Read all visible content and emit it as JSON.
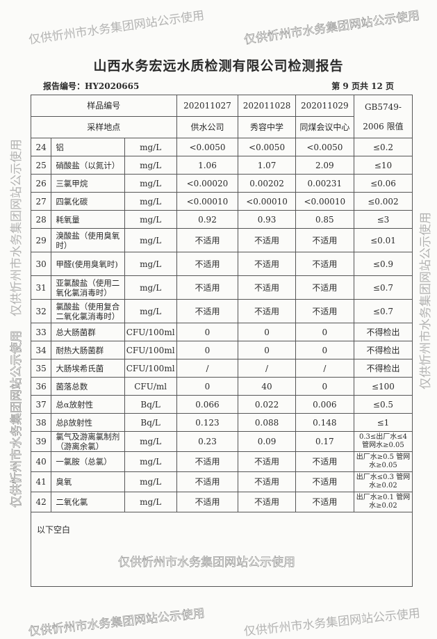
{
  "title": "山西水务宏远水质检测有限公司检测报告",
  "report_no": "报告编号：HY2020665",
  "page_no": "第 9 页共 12 页",
  "header": {
    "sample_no_label": "样品编号",
    "location_label": "采样地点",
    "samples": [
      "202011027",
      "202011028",
      "202011029"
    ],
    "locations": [
      "供水公司",
      "秀容中学",
      "同煤会议中心"
    ],
    "limit_label_1": "GB5749-",
    "limit_label_2": "2006 限值"
  },
  "rows": [
    {
      "no": "24",
      "name": "铝",
      "unit": "mg/L",
      "v": [
        "<0.0050",
        "<0.0050",
        "<0.0050"
      ],
      "limit": "≤0.2"
    },
    {
      "no": "25",
      "name": "硝酸盐（以氮计）",
      "unit": "mg/L",
      "v": [
        "1.06",
        "1.07",
        "2.09"
      ],
      "limit": "≤10"
    },
    {
      "no": "26",
      "name": "三氯甲烷",
      "unit": "mg/L",
      "v": [
        "<0.00020",
        "0.00202",
        "0.00231"
      ],
      "limit": "≤0.06"
    },
    {
      "no": "27",
      "name": "四氯化碳",
      "unit": "mg/L",
      "v": [
        "<0.00010",
        "<0.00010",
        "<0.00010"
      ],
      "limit": "≤0.002"
    },
    {
      "no": "28",
      "name": "耗氧量",
      "unit": "mg/L",
      "v": [
        "0.92",
        "0.93",
        "0.85"
      ],
      "limit": "≤3"
    },
    {
      "no": "29",
      "name": "溴酸盐（使用臭氧时）",
      "unit": "mg/L",
      "v": [
        "不适用",
        "不适用",
        "不适用"
      ],
      "limit": "≤0.01"
    },
    {
      "no": "30",
      "name": "甲醛(使用臭氧时)",
      "unit": "mg/L",
      "v": [
        "不适用",
        "不适用",
        "不适用"
      ],
      "limit": "≤0.9"
    },
    {
      "no": "31",
      "name": "亚氯酸盐（使用二氧化氯消毒时）",
      "unit": "mg/L",
      "v": [
        "不适用",
        "不适用",
        "不适用"
      ],
      "limit": "≤0.7"
    },
    {
      "no": "32",
      "name": "氯酸盐（使用复合二氧化氯消毒时）",
      "unit": "mg/L",
      "v": [
        "不适用",
        "不适用",
        "不适用"
      ],
      "limit": "≤0.7"
    },
    {
      "no": "33",
      "name": "总大肠菌群",
      "unit": "CFU/100ml",
      "v": [
        "0",
        "0",
        "0"
      ],
      "limit": "不得检出"
    },
    {
      "no": "34",
      "name": "耐热大肠菌群",
      "unit": "CFU/100ml",
      "v": [
        "0",
        "0",
        "0"
      ],
      "limit": "不得检出"
    },
    {
      "no": "35",
      "name": "大肠埃希氏菌",
      "unit": "CFU/100ml",
      "v": [
        "/",
        "/",
        "/"
      ],
      "limit": "不得检出"
    },
    {
      "no": "36",
      "name": "菌落总数",
      "unit": "CFU/ml",
      "v": [
        "0",
        "40",
        "0"
      ],
      "limit": "≤100"
    },
    {
      "no": "37",
      "name": "总α放射性",
      "unit": "Bq/L",
      "v": [
        "0.066",
        "0.022",
        "0.006"
      ],
      "limit": "≤0.5"
    },
    {
      "no": "38",
      "name": "总β放射性",
      "unit": "Bq/L",
      "v": [
        "0.123",
        "0.088",
        "0.148"
      ],
      "limit": "≤1"
    },
    {
      "no": "39",
      "name": "氯气及游离氯制剂（游离余氯）",
      "unit": "mg/L",
      "v": [
        "0.23",
        "0.09",
        "0.17"
      ],
      "limit": "0.3≤出厂水≤4 管网水≥0.05"
    },
    {
      "no": "40",
      "name": "一氯胺（总氯）",
      "unit": "mg/L",
      "v": [
        "不适用",
        "不适用",
        "不适用"
      ],
      "limit": "出厂水≥0.5 管网水≥0.05"
    },
    {
      "no": "41",
      "name": "臭氧",
      "unit": "mg/L",
      "v": [
        "不适用",
        "不适用",
        "不适用"
      ],
      "limit": "出厂水≤0.3 管网水≥0.02"
    },
    {
      "no": "42",
      "name": "二氧化氯",
      "unit": "mg/L",
      "v": [
        "不适用",
        "不适用",
        "不适用"
      ],
      "limit": "出厂水≥0.1 管网水≥0.02"
    }
  ],
  "blank_note": "以下空白",
  "watermark": "仅供忻州市水务集团网站公示使用"
}
